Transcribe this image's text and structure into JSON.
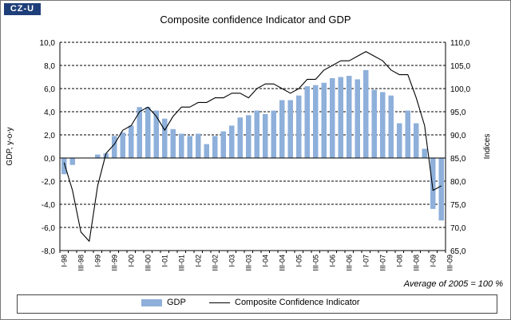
{
  "logo_text": "CZ-U",
  "chart_data": {
    "type": "bar",
    "title": "Composite confidence Indicator and GDP",
    "ylabel_left": "GDP, y-o-y",
    "ylabel_right": "Indices",
    "note": "Average of 2005 = 100 %",
    "ylim_left": [
      -8,
      10
    ],
    "ylim_right": [
      65,
      110
    ],
    "yticks_left": [
      "10,0",
      "8,0",
      "6,0",
      "4,0",
      "2,0",
      "0,0",
      "-2,0",
      "-4,0",
      "-6,0",
      "-8,0"
    ],
    "yticks_right": [
      "110,0",
      "105,0",
      "100,0",
      "95,0",
      "90,0",
      "85,0",
      "80,0",
      "75,0",
      "70,0",
      "65,0"
    ],
    "categories": [
      "I-98",
      "II-98",
      "III-98",
      "IV-98",
      "I-99",
      "II-99",
      "III-99",
      "IV-99",
      "I-00",
      "II-00",
      "III-00",
      "IV-00",
      "I-01",
      "II-01",
      "III-01",
      "IV-01",
      "I-02",
      "II-02",
      "III-02",
      "IV-02",
      "I-03",
      "II-03",
      "III-03",
      "IV-03",
      "I-04",
      "II-04",
      "III-04",
      "IV-04",
      "I-05",
      "II-05",
      "III-05",
      "IV-05",
      "I-06",
      "II-06",
      "III-06",
      "IV-06",
      "I-07",
      "II-07",
      "III-07",
      "IV-07",
      "I-08",
      "II-08",
      "III-08",
      "IV-08",
      "I-09",
      "II-09"
    ],
    "xtick_labels": [
      "I-98",
      "III-98",
      "I-99",
      "III-99",
      "I-00",
      "III-00",
      "I-01",
      "III-01",
      "I-02",
      "III-02",
      "I-03",
      "III-03",
      "I-04",
      "III-04",
      "I-05",
      "III-05",
      "I-06",
      "III-06",
      "I-07",
      "III-07",
      "I-08",
      "III-08",
      "I-09",
      "III-09"
    ],
    "series": [
      {
        "name": "GDP",
        "kind": "bar",
        "axis": "left",
        "color": "#8eb0da",
        "values": [
          -1.4,
          -0.6,
          0.0,
          0.0,
          0.3,
          0.4,
          1.9,
          2.2,
          2.8,
          4.4,
          4.4,
          4.1,
          3.4,
          2.5,
          2.1,
          1.9,
          2.1,
          1.2,
          1.9,
          2.3,
          2.8,
          3.5,
          3.7,
          4.1,
          3.8,
          4.1,
          5.0,
          5.0,
          5.4,
          6.2,
          6.3,
          6.5,
          6.9,
          7.0,
          7.1,
          6.8,
          7.6,
          5.9,
          5.7,
          5.4,
          3.0,
          4.1,
          3.0,
          0.8,
          -4.4,
          -5.4
        ]
      },
      {
        "name": "Composite Confidence Indicator",
        "kind": "line",
        "axis": "right",
        "color": "#000000",
        "values": [
          84,
          78,
          69,
          67,
          79,
          86,
          88,
          91,
          92,
          95,
          96,
          94,
          91,
          94,
          96,
          96,
          97,
          97,
          98,
          98,
          99,
          99,
          98,
          100,
          101,
          101,
          100,
          99,
          100,
          102,
          102,
          104,
          105,
          106,
          106,
          107,
          108,
          107,
          106,
          104,
          103,
          103,
          98,
          92,
          78,
          79
        ]
      }
    ]
  }
}
